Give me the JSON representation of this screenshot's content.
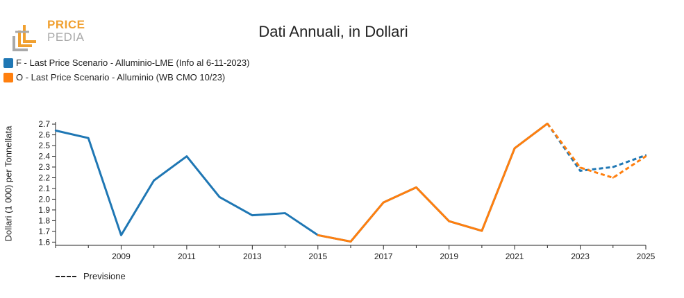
{
  "logo": {
    "line1": "PRICE",
    "line2": "PEDIA"
  },
  "colors": {
    "series_f": "#1f77b4",
    "series_o": "#ff7f0e",
    "logo_orange": "#f0a030",
    "logo_gray": "#a9a9a9"
  },
  "chart_data": {
    "type": "line",
    "title": "Dati Annuali, in Dollari",
    "ylabel": "Dollari (1 000) per Tonnellata",
    "xlabel": "",
    "xlim": [
      2007,
      2025
    ],
    "ylim": [
      1.57,
      2.72
    ],
    "x_ticks": [
      2009,
      2011,
      2013,
      2015,
      2017,
      2019,
      2021,
      2023,
      2025
    ],
    "y_ticks": [
      1.6,
      1.7,
      1.8,
      1.9,
      2.0,
      2.1,
      2.2,
      2.3,
      2.4,
      2.5,
      2.6,
      2.7
    ],
    "grid": false,
    "legend_position": "top-left",
    "forecast_label": "Previsione",
    "series": [
      {
        "name": "F - Last Price Scenario - Alluminio-LME (Info al 6-11-2023)",
        "color": "#1f77b4",
        "x": [
          2007,
          2008,
          2009,
          2010,
          2011,
          2012,
          2013,
          2014,
          2015,
          2016,
          2017,
          2018,
          2019,
          2020,
          2021,
          2022,
          2023,
          2024,
          2025
        ],
        "values": [
          2.64,
          2.57,
          1.665,
          2.175,
          2.4,
          2.02,
          1.85,
          1.87,
          1.665,
          1.605,
          1.97,
          2.11,
          1.795,
          1.705,
          2.475,
          2.705,
          2.265,
          2.3,
          2.41
        ],
        "forecast_from": 2022
      },
      {
        "name": "O - Last Price Scenario - Alluminio (WB CMO 10/23)",
        "color": "#ff7f0e",
        "x": [
          2015,
          2016,
          2017,
          2018,
          2019,
          2020,
          2021,
          2022,
          2023,
          2024,
          2025
        ],
        "values": [
          1.665,
          1.605,
          1.97,
          2.11,
          1.795,
          1.705,
          2.475,
          2.705,
          2.295,
          2.2,
          2.4
        ],
        "forecast_from": 2022
      }
    ]
  }
}
